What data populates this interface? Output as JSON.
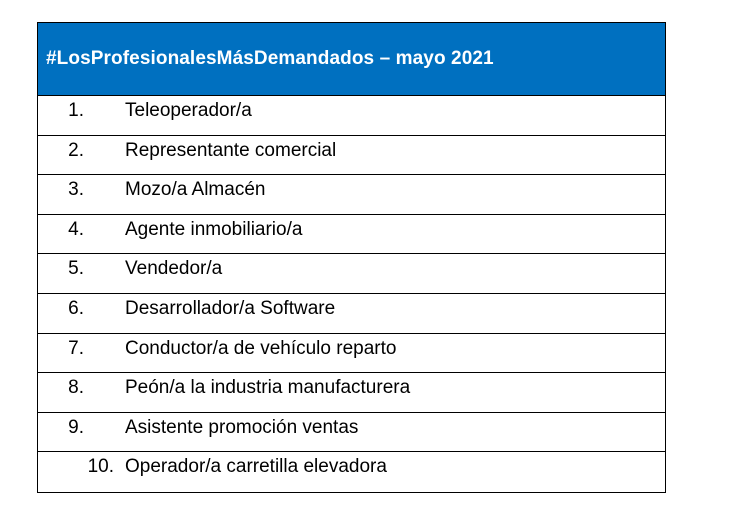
{
  "table": {
    "title": "#LosProfesionalesMásDemandados – mayo 2021",
    "header_color": "#0070c0",
    "rows": [
      {
        "num": "1.",
        "label": "Teleoperador/a"
      },
      {
        "num": "2.",
        "label": "Representante comercial"
      },
      {
        "num": "3.",
        "label": "Mozo/a Almacén"
      },
      {
        "num": "4.",
        "label": "Agente inmobiliario/a"
      },
      {
        "num": "5.",
        "label": "Vendedor/a"
      },
      {
        "num": "6.",
        "label": "Desarrollador/a Software"
      },
      {
        "num": "7.",
        "label": "Conductor/a de vehículo reparto"
      },
      {
        "num": "8.",
        "label": "Peón/a la industria manufacturera"
      },
      {
        "num": "9.",
        "label": "Asistente promoción ventas"
      },
      {
        "num": "10.",
        "label": "Operador/a carretilla elevadora"
      }
    ]
  }
}
